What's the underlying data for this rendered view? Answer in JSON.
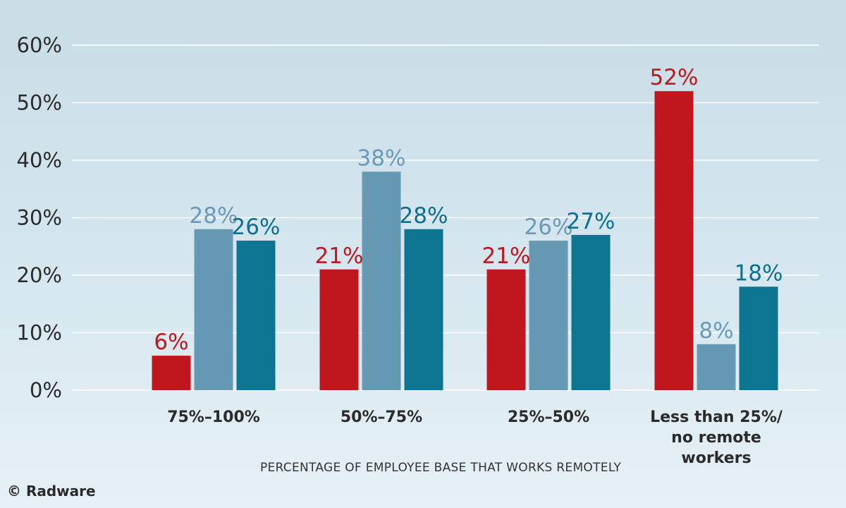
{
  "credit": "© Radware",
  "chart_data": {
    "type": "bar",
    "categories": [
      "75%–100%",
      "50%–75%",
      "25%–50%",
      "Less than 25%/\nno remote\nworkers"
    ],
    "series": [
      {
        "values": [
          6,
          21,
          21,
          52
        ],
        "color": "#c0171e",
        "labelColor": "#c0171e"
      },
      {
        "values": [
          28,
          38,
          26,
          8
        ],
        "color": "#6699b3",
        "labelColor": "#6a9ab7"
      },
      {
        "values": [
          26,
          28,
          27,
          18
        ],
        "color": "#0d7492",
        "labelColor": "#0f6f91"
      }
    ],
    "xlabel": "PERCENTAGE OF EMPLOYEE BASE THAT WORKS REMOTELY",
    "ylabel": "",
    "ylim": [
      0,
      60
    ],
    "yticks": [
      0,
      10,
      20,
      30,
      40,
      50,
      60
    ],
    "ytick_format": "%",
    "grid": true
  }
}
